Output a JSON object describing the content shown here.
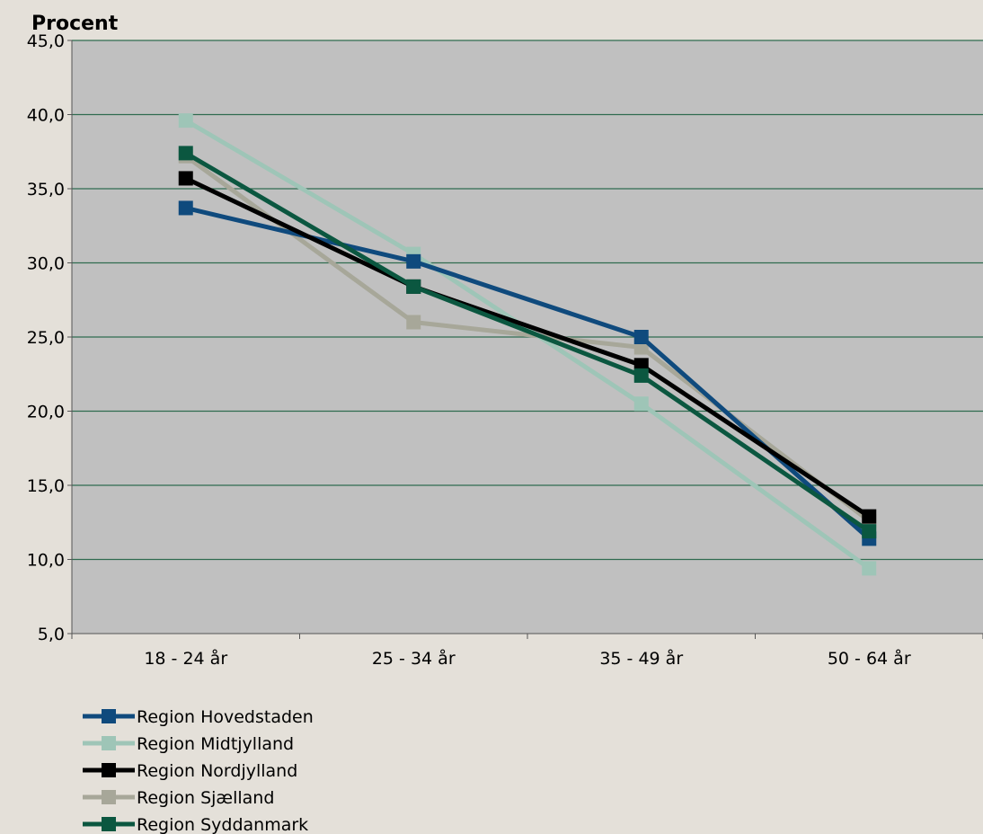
{
  "chart_data": {
    "type": "line",
    "ylabel": "Procent",
    "xlabel": "",
    "ylim": [
      5,
      45
    ],
    "y_ticks": [
      "5,0",
      "10,0",
      "15,0",
      "20,0",
      "25,0",
      "30,0",
      "35,0",
      "40,0",
      "45,0"
    ],
    "categories": [
      "18 - 24 år",
      "25 - 34 år",
      "35 - 49 år",
      "50 - 64 år"
    ],
    "grid": true,
    "legend_position": "bottom-left",
    "plot_background": "#c0c0c0",
    "grid_color": "#2f6b4f",
    "series": [
      {
        "name": "Region Hovedstaden",
        "color": "#0f4a7d",
        "values": [
          33.7,
          30.1,
          25.0,
          11.4
        ]
      },
      {
        "name": "Region Midtjylland",
        "color": "#9ec5b7",
        "values": [
          39.6,
          30.6,
          20.5,
          9.4
        ]
      },
      {
        "name": "Region Nordjylland",
        "color": "#000000",
        "values": [
          35.7,
          28.4,
          23.1,
          12.9
        ]
      },
      {
        "name": "Region Sjælland",
        "color": "#a7a799",
        "values": [
          37.2,
          26.0,
          24.3,
          12.6
        ]
      },
      {
        "name": "Region Syddanmark",
        "color": "#0b5740",
        "values": [
          37.4,
          28.4,
          22.4,
          11.9
        ]
      }
    ]
  }
}
